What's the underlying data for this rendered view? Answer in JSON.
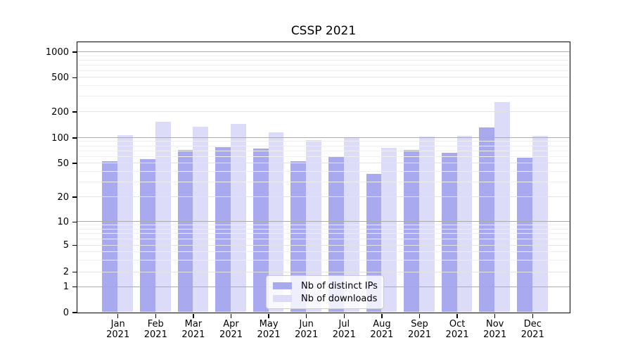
{
  "chart_data": {
    "type": "bar",
    "title": "CSSP 2021",
    "categories": [
      "Jan 2021",
      "Feb 2021",
      "Mar 2021",
      "Apr 2021",
      "May 2021",
      "Jun 2021",
      "Jul 2021",
      "Aug 2021",
      "Sep 2021",
      "Oct 2021",
      "Nov 2021",
      "Dec 2021"
    ],
    "series": [
      {
        "name": "Nb of distinct IPs",
        "color": "#a9a9f0",
        "values": [
          52,
          56,
          72,
          77,
          74,
          52,
          60,
          37,
          72,
          66,
          130,
          58
        ]
      },
      {
        "name": "Nb of downloads",
        "color": "#dcdcf9",
        "values": [
          106,
          153,
          133,
          145,
          116,
          93,
          101,
          76,
          102,
          105,
          256,
          104
        ]
      }
    ],
    "yscale": "symlog",
    "yticks": [
      0,
      1,
      2,
      5,
      10,
      20,
      50,
      100,
      200,
      500,
      1000
    ],
    "ylim": [
      0,
      1250
    ],
    "xlabel": "",
    "ylabel": "",
    "grid": "both",
    "grid_decade_color": "#ababab",
    "grid_labeled_color": "#e3e3e3",
    "grid_minor_color": "#efefef",
    "legend_location": "lower center, inside plot"
  }
}
